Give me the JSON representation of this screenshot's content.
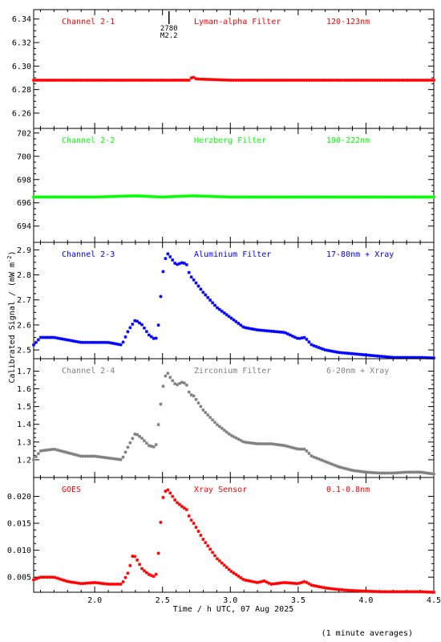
{
  "figure": {
    "xlabel": "Time / h UTC, 07 Aug 2025",
    "ylabel": "Calibrated Signal / (mW m",
    "ylabel_sup": "-2",
    "ylabel_end": ")",
    "footnote": "(1 minute averages)",
    "flare_marker": {
      "x": 2.53,
      "labels": [
        "2780",
        "M2.2"
      ]
    }
  },
  "chart_data": [
    {
      "type": "scatter",
      "channel": "Channel 2-1",
      "filter": "Lyman-alpha Filter",
      "band": "120-123nm",
      "color": "#ff0000",
      "xlim": [
        1.55,
        4.5
      ],
      "ylim": [
        6.247,
        6.348
      ],
      "yticks": [
        6.26,
        6.28,
        6.3,
        6.32,
        6.34
      ],
      "series": [
        {
          "x": [
            1.55,
            2.0,
            2.5,
            2.7,
            2.72,
            2.75,
            3.0,
            3.5,
            4.0,
            4.5
          ],
          "y": [
            6.288,
            6.288,
            6.288,
            6.288,
            6.291,
            6.289,
            6.288,
            6.288,
            6.288,
            6.288
          ]
        }
      ]
    },
    {
      "type": "scatter",
      "channel": "Channel 2-2",
      "filter": "Herzberg Filter",
      "band": "190-222nm",
      "color": "#00ff00",
      "xlim": [
        1.55,
        4.5
      ],
      "ylim": [
        692.6,
        702.4
      ],
      "yticks": [
        694,
        696,
        698,
        700,
        702
      ],
      "series": [
        {
          "x": [
            1.55,
            2.0,
            2.3,
            2.5,
            2.72,
            3.0,
            3.5,
            4.0,
            4.5
          ],
          "y": [
            696.5,
            696.5,
            696.6,
            696.5,
            696.6,
            696.5,
            696.5,
            696.5,
            696.5
          ]
        }
      ]
    },
    {
      "type": "scatter",
      "channel": "Channel 2-3",
      "filter": "Aluminium Filter",
      "band": "17-80nm + Xray",
      "color": "#0000ff",
      "xlim": [
        1.55,
        4.5
      ],
      "ylim": [
        2.465,
        2.93
      ],
      "yticks": [
        2.5,
        2.6,
        2.7,
        2.8,
        2.9
      ],
      "series": [
        {
          "x": [
            1.55,
            1.6,
            1.7,
            1.8,
            1.9,
            2.0,
            2.1,
            2.2,
            2.25,
            2.3,
            2.35,
            2.4,
            2.45,
            2.47,
            2.5,
            2.53,
            2.56,
            2.6,
            2.65,
            2.68,
            2.7,
            2.73,
            2.8,
            2.9,
            3.0,
            3.1,
            3.2,
            3.3,
            3.4,
            3.5,
            3.55,
            3.6,
            3.7,
            3.8,
            3.9,
            4.0,
            4.1,
            4.2,
            4.3,
            4.4,
            4.5
          ],
          "y": [
            2.52,
            2.55,
            2.55,
            2.54,
            2.53,
            2.53,
            2.53,
            2.52,
            2.58,
            2.62,
            2.6,
            2.56,
            2.54,
            2.6,
            2.8,
            2.89,
            2.87,
            2.84,
            2.85,
            2.84,
            2.8,
            2.78,
            2.73,
            2.67,
            2.63,
            2.59,
            2.58,
            2.575,
            2.57,
            2.545,
            2.55,
            2.52,
            2.5,
            2.49,
            2.485,
            2.48,
            2.475,
            2.47,
            2.47,
            2.47,
            2.468
          ]
        }
      ]
    },
    {
      "type": "scatter",
      "channel": "Channel 2-4",
      "filter": "Zirconium Filter",
      "band": "6-20nm + Xray",
      "color": "#808080",
      "xlim": [
        1.55,
        4.5
      ],
      "ylim": [
        1.1,
        1.77
      ],
      "yticks": [
        1.2,
        1.3,
        1.4,
        1.5,
        1.6,
        1.7
      ],
      "series": [
        {
          "x": [
            1.55,
            1.6,
            1.7,
            1.8,
            1.9,
            2.0,
            2.1,
            2.2,
            2.25,
            2.3,
            2.35,
            2.4,
            2.45,
            2.47,
            2.5,
            2.53,
            2.56,
            2.6,
            2.65,
            2.68,
            2.7,
            2.73,
            2.8,
            2.9,
            3.0,
            3.1,
            3.2,
            3.3,
            3.4,
            3.5,
            3.55,
            3.6,
            3.7,
            3.8,
            3.9,
            4.0,
            4.1,
            4.2,
            4.3,
            4.4,
            4.5
          ],
          "y": [
            1.2,
            1.25,
            1.26,
            1.24,
            1.22,
            1.22,
            1.21,
            1.2,
            1.28,
            1.35,
            1.32,
            1.28,
            1.27,
            1.4,
            1.6,
            1.7,
            1.66,
            1.62,
            1.64,
            1.62,
            1.57,
            1.56,
            1.48,
            1.4,
            1.34,
            1.3,
            1.29,
            1.29,
            1.28,
            1.26,
            1.26,
            1.22,
            1.19,
            1.16,
            1.14,
            1.13,
            1.125,
            1.125,
            1.13,
            1.13,
            1.12
          ]
        }
      ]
    },
    {
      "type": "scatter",
      "channel": "GOES",
      "filter": "Xray Sensor",
      "band": "0.1-0.8nm",
      "color": "#ff0000",
      "xlim": [
        1.55,
        4.5
      ],
      "ylim": [
        0.0022,
        0.0235
      ],
      "yticks": [
        0.005,
        0.01,
        0.015,
        0.02
      ],
      "ytick_labels": [
        "0.005",
        "0.010",
        "0.015",
        "0.020"
      ],
      "series": [
        {
          "x": [
            1.55,
            1.6,
            1.7,
            1.8,
            1.9,
            2.0,
            2.1,
            2.2,
            2.25,
            2.28,
            2.3,
            2.35,
            2.4,
            2.45,
            2.47,
            2.5,
            2.53,
            2.56,
            2.6,
            2.65,
            2.68,
            2.7,
            2.73,
            2.8,
            2.9,
            3.0,
            3.1,
            3.2,
            3.25,
            3.3,
            3.4,
            3.5,
            3.55,
            3.6,
            3.7,
            3.8,
            3.9,
            4.0,
            4.1,
            4.2,
            4.3,
            4.4,
            4.5
          ],
          "y": [
            0.0045,
            0.005,
            0.005,
            0.0042,
            0.0038,
            0.004,
            0.0037,
            0.0037,
            0.006,
            0.009,
            0.0088,
            0.0065,
            0.0055,
            0.005,
            0.0095,
            0.0195,
            0.0215,
            0.0205,
            0.019,
            0.018,
            0.0175,
            0.016,
            0.015,
            0.012,
            0.0085,
            0.0062,
            0.0045,
            0.004,
            0.0043,
            0.0037,
            0.004,
            0.0038,
            0.0042,
            0.0035,
            0.003,
            0.0027,
            0.0025,
            0.0024,
            0.0023,
            0.0023,
            0.0023,
            0.0023,
            0.0022
          ]
        }
      ]
    }
  ],
  "x_axis": {
    "xlim": [
      1.55,
      4.5
    ],
    "ticks": [
      2.0,
      2.5,
      3.0,
      3.5,
      4.0,
      4.5
    ],
    "tick_labels": [
      "2.0",
      "2.5",
      "3.0",
      "3.5",
      "4.0",
      "4.5"
    ]
  }
}
